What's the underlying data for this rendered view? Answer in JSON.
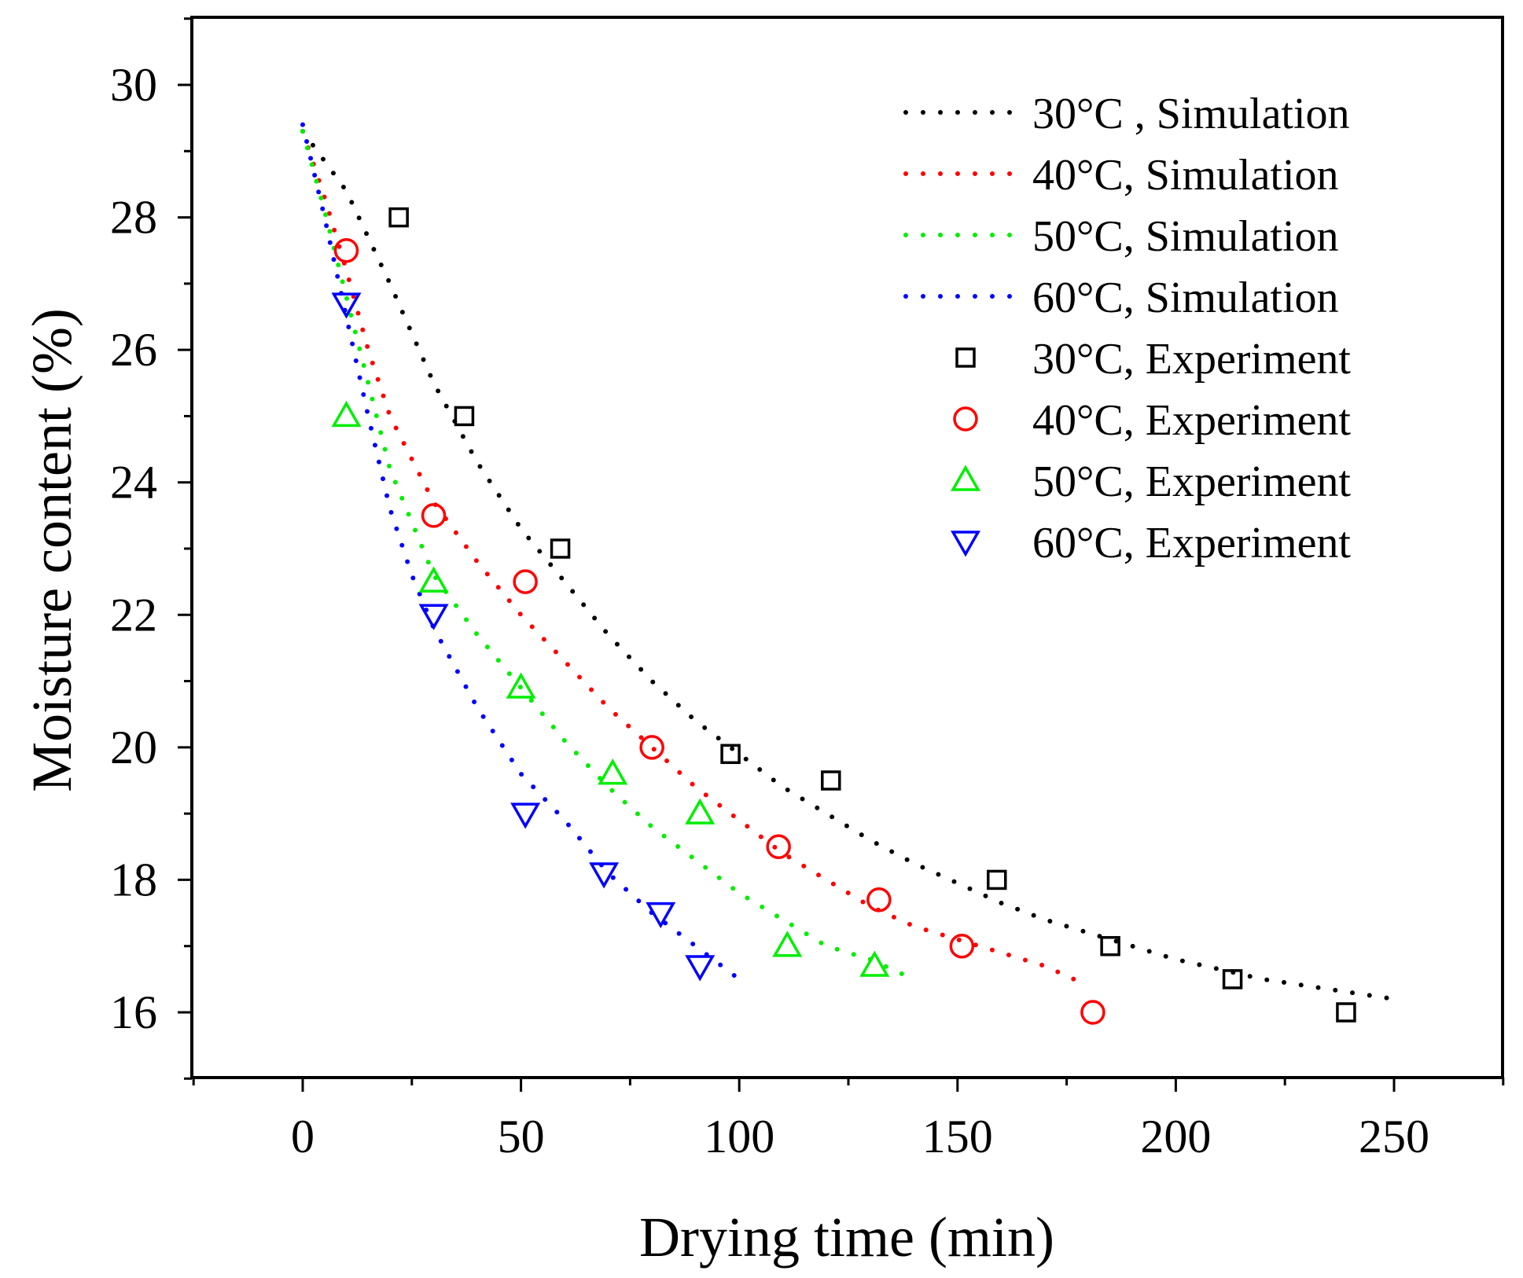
{
  "chart_data": {
    "type": "scatter",
    "xlabel": "Drying time (min)",
    "ylabel": "Moisture content (%)",
    "xlim": [
      -25,
      275
    ],
    "ylim": [
      15,
      31
    ],
    "x_ticks": [
      0,
      50,
      100,
      150,
      200,
      250
    ],
    "y_ticks": [
      16,
      18,
      20,
      22,
      24,
      26,
      28,
      30
    ],
    "grid": false,
    "legend_position": "top-right",
    "simulation_series": [
      {
        "name": "30°C , Simulation",
        "color": "#000000",
        "x": [
          0,
          10,
          20,
          30,
          40,
          50,
          60,
          70,
          80,
          90,
          100,
          110,
          120,
          130,
          140,
          150,
          160,
          170,
          180,
          190,
          200,
          210,
          220,
          230,
          240,
          250
        ],
        "y": [
          29.3,
          28.4,
          27.0,
          25.5,
          24.3,
          23.3,
          22.5,
          21.7,
          21.0,
          20.4,
          19.9,
          19.4,
          19.0,
          18.6,
          18.25,
          17.95,
          17.65,
          17.4,
          17.2,
          17.0,
          16.8,
          16.65,
          16.5,
          16.4,
          16.3,
          16.2
        ]
      },
      {
        "name": "40°C, Simulation",
        "color": "#ff0000",
        "x": [
          0,
          5,
          10,
          15,
          20,
          30,
          40,
          50,
          60,
          70,
          80,
          90,
          100,
          110,
          120,
          130,
          140,
          150,
          160,
          170,
          180
        ],
        "y": [
          29.3,
          28.3,
          27.2,
          26.0,
          25.0,
          23.7,
          22.8,
          22.0,
          21.3,
          20.6,
          20.0,
          19.4,
          18.9,
          18.4,
          18.0,
          17.6,
          17.3,
          17.1,
          16.9,
          16.7,
          16.4
        ]
      },
      {
        "name": "50°C, Simulation",
        "color": "#00ee00",
        "x": [
          0,
          5,
          10,
          15,
          20,
          30,
          40,
          50,
          60,
          70,
          80,
          90,
          100,
          110,
          120,
          130,
          140
        ],
        "y": [
          29.3,
          28.1,
          26.8,
          25.5,
          24.2,
          22.6,
          21.7,
          20.9,
          20.1,
          19.4,
          18.8,
          18.3,
          17.8,
          17.4,
          17.0,
          16.8,
          16.5
        ]
      },
      {
        "name": "60°C, Simulation",
        "color": "#0000ff",
        "x": [
          0,
          5,
          10,
          15,
          20,
          25,
          30,
          40,
          50,
          60,
          70,
          80,
          90,
          100
        ],
        "y": [
          29.4,
          28.0,
          26.5,
          25.0,
          23.6,
          22.6,
          21.8,
          20.6,
          19.6,
          18.9,
          18.1,
          17.5,
          17.0,
          16.5
        ]
      }
    ],
    "experiment_series": [
      {
        "name": "30°C, Experiment",
        "color": "#000000",
        "marker": "square",
        "x": [
          22,
          37,
          59,
          98,
          121,
          159,
          185,
          213,
          239
        ],
        "y": [
          28.0,
          25.0,
          23.0,
          19.9,
          19.5,
          18.0,
          17.0,
          16.5,
          16.0
        ]
      },
      {
        "name": "40°C, Experiment",
        "color": "#ff0000",
        "marker": "circle",
        "x": [
          10,
          30,
          51,
          80,
          109,
          132,
          151,
          181
        ],
        "y": [
          27.5,
          23.5,
          22.5,
          20.0,
          18.5,
          17.7,
          17.0,
          16.0
        ]
      },
      {
        "name": "50°C, Experiment",
        "color": "#00ee00",
        "marker": "triangle-up",
        "x": [
          10,
          30,
          50,
          71,
          91,
          111,
          131
        ],
        "y": [
          25.0,
          22.5,
          20.9,
          19.6,
          19.0,
          17.0,
          16.7
        ]
      },
      {
        "name": "60°C, Experiment",
        "color": "#0000ff",
        "marker": "triangle-down",
        "x": [
          10,
          30,
          51,
          69,
          82,
          91
        ],
        "y": [
          26.7,
          22.0,
          19.0,
          18.1,
          17.5,
          16.7
        ]
      }
    ]
  }
}
